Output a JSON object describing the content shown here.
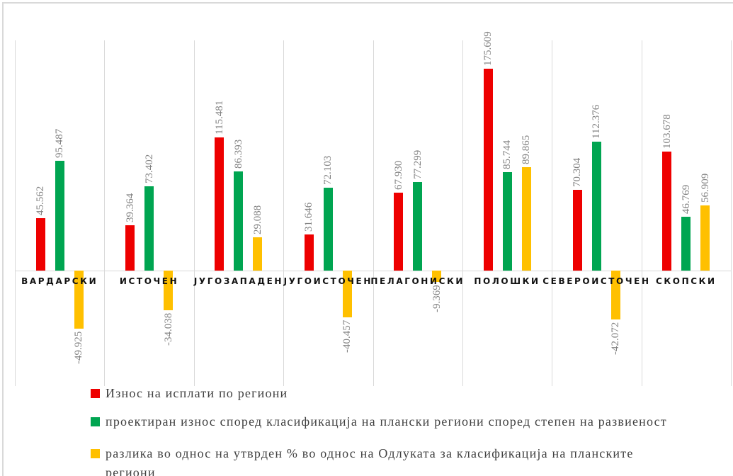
{
  "chart_data": {
    "type": "bar",
    "title": "",
    "xlabel": "",
    "ylabel": "",
    "ylim": [
      -100,
      200
    ],
    "grid": "vertical-category-separators",
    "legend_position": "bottom-left",
    "value_label_style": "rotated 90deg CCW, 3 decimals, gray serif",
    "categories": [
      "ВАРДАРСКИ",
      "ИСТОЧЕН",
      "ЈУГОЗАПАДЕН",
      "ЈУГОИСТОЧЕН",
      "ПЕЛАГОНИСКИ",
      "ПОЛОШКИ",
      "СЕВЕРОИСТОЧЕН",
      "СКОПСКИ"
    ],
    "series": [
      {
        "name": "Износ на исплати по региони",
        "color": "#ee0000",
        "values": [
          45.562,
          39.364,
          115.481,
          31.646,
          67.93,
          175.609,
          70.304,
          103.678
        ]
      },
      {
        "name": "проектиран износ според класификација на плански региони според степен на развиеност",
        "color": "#00a551",
        "values": [
          95.487,
          73.402,
          86.393,
          72.103,
          77.299,
          85.744,
          112.376,
          46.769
        ]
      },
      {
        "name": "разлика во однос на утврден % во однос на Одлуката за класификација на планските региони",
        "color": "#ffc000",
        "values": [
          -49.925,
          -34.038,
          29.088,
          -40.457,
          -9.369,
          89.865,
          -42.072,
          56.909
        ]
      }
    ]
  }
}
